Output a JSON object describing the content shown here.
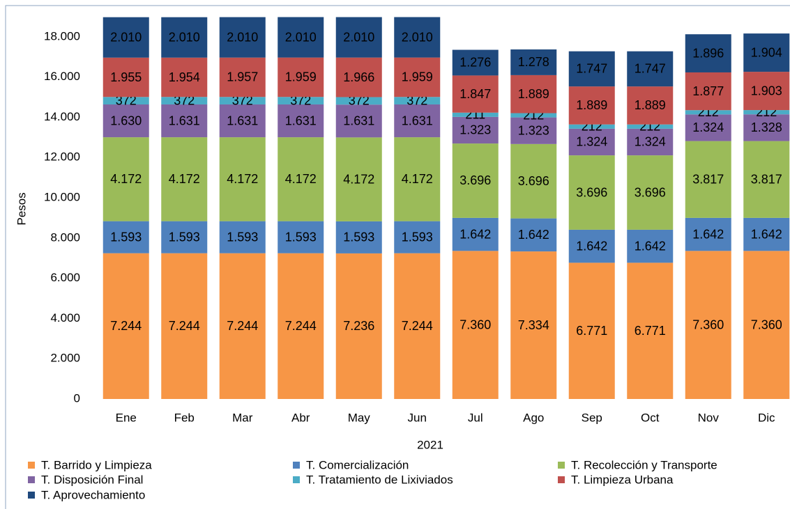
{
  "chart_data": {
    "type": "stacked_bar",
    "x_label": "2021",
    "y_label": "Pesos",
    "categories": [
      "Ene",
      "Feb",
      "Mar",
      "Abr",
      "May",
      "Jun",
      "Jul",
      "Ago",
      "Sep",
      "Oct",
      "Nov",
      "Dic"
    ],
    "ylim": [
      0,
      19000
    ],
    "yticks": [
      0,
      {
        "value": 2000,
        "label": "2.000"
      },
      {
        "value": 4000,
        "label": "4.000"
      },
      {
        "value": 6000,
        "label": "6.000"
      },
      {
        "value": 8000,
        "label": "8.000"
      },
      {
        "value": 10000,
        "label": "10.000"
      },
      {
        "value": 12000,
        "label": "12.000"
      },
      {
        "value": 14000,
        "label": "14.000"
      },
      {
        "value": 16000,
        "label": "16.000"
      },
      {
        "value": 18000,
        "label": "18.000"
      }
    ],
    "series": [
      {
        "name": "T. Barrido y Limpieza",
        "color": "#f79646",
        "label_color": "#ffffff",
        "values": [
          7244,
          7244,
          7244,
          7244,
          7236,
          7244,
          7360,
          7334,
          6771,
          6771,
          7360,
          7360
        ],
        "value_labels": [
          "7.244",
          "7.244",
          "7.244",
          "7.244",
          "7.236",
          "7.244",
          "7.360",
          "7.334",
          "6.771",
          "6.771",
          "7.360",
          "7.360"
        ]
      },
      {
        "name": "T. Comercialización",
        "color": "#4f81bd",
        "label_color": "#000000",
        "values": [
          1593,
          1593,
          1593,
          1593,
          1593,
          1593,
          1642,
          1642,
          1642,
          1642,
          1642,
          1642
        ],
        "value_labels": [
          "1.593",
          "1.593",
          "1.593",
          "1.593",
          "1.593",
          "1.593",
          "1.642",
          "1.642",
          "1.642",
          "1.642",
          "1.642",
          "1.642"
        ]
      },
      {
        "name": "T. Recolección y Transporte",
        "color": "#9bbb59",
        "label_color": "#000000",
        "values": [
          4172,
          4172,
          4172,
          4172,
          4172,
          4172,
          3696,
          3696,
          3696,
          3696,
          3817,
          3817
        ],
        "value_labels": [
          "4.172",
          "4.172",
          "4.172",
          "4.172",
          "4.172",
          "4.172",
          "3.696",
          "3.696",
          "3.696",
          "3.696",
          "3.817",
          "3.817"
        ]
      },
      {
        "name": "T. Disposición Final",
        "color": "#8064a2",
        "label_color": "#000000",
        "values": [
          1630,
          1631,
          1631,
          1631,
          1631,
          1631,
          1323,
          1323,
          1324,
          1324,
          1324,
          1328
        ],
        "value_labels": [
          "1.630",
          "1.631",
          "1.631",
          "1.631",
          "1.631",
          "1.631",
          "1.323",
          "1.323",
          "1.324",
          "1.324",
          "1.324",
          "1.328"
        ]
      },
      {
        "name": "T. Tratamiento de Lixiviados",
        "color": "#4bacc6",
        "label_color": "#ffffff",
        "values": [
          372,
          372,
          372,
          372,
          372,
          372,
          211,
          212,
          212,
          212,
          212,
          212
        ]
      },
      {
        "name": "T. Limpieza Urbana",
        "color": "#c0504d",
        "label_color": "#000000",
        "values": [
          1955,
          1954,
          1957,
          1959,
          1966,
          1959,
          1847,
          1889,
          1889,
          1889,
          1877,
          1903
        ],
        "value_labels": [
          "1.955",
          "1.954",
          "1.957",
          "1.959",
          "1.966",
          "1.959",
          "1.847",
          "1.889",
          "1.889",
          "1.889",
          "1.877",
          "1.903"
        ]
      },
      {
        "name": "T. Aprovechamiento",
        "color": "#1f497d",
        "label_color": "#ffffff",
        "values": [
          2010,
          2010,
          2010,
          2010,
          2010,
          2010,
          1276,
          1278,
          1747,
          1747,
          1896,
          1904
        ],
        "value_labels": [
          "2.010",
          "2.010",
          "2.010",
          "2.010",
          "2.010",
          "2.010",
          "1.276",
          "1.278",
          "1.747",
          "1.747",
          "1.896",
          "1.904"
        ]
      }
    ]
  }
}
